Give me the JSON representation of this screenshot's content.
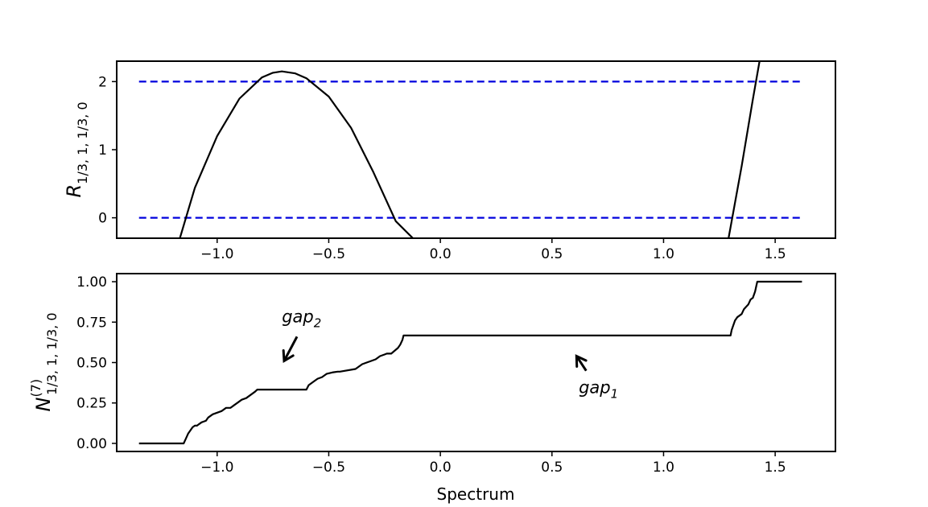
{
  "chart_data": [
    {
      "type": "line",
      "ylabel_main": "R",
      "ylabel_sub": "1/3, 1, 1/3, 0",
      "xlim": [
        -1.45,
        1.77
      ],
      "ylim": [
        -0.3,
        2.3
      ],
      "xticks": [
        -1.0,
        -0.5,
        0.0,
        0.5,
        1.0,
        1.5
      ],
      "xtick_labels": [
        "−1.0",
        "−0.5",
        "0.0",
        "0.5",
        "1.0",
        "1.5"
      ],
      "yticks": [
        0,
        1,
        2
      ],
      "ytick_labels": [
        "0",
        "1",
        "2"
      ],
      "grid": false,
      "colors": {
        "curve": "#000000",
        "reference": "#0000dd"
      },
      "reference_lines": [
        {
          "y": 2,
          "x_range": [
            -1.35,
            1.62
          ],
          "style": "dashed"
        },
        {
          "y": 0,
          "x_range": [
            -1.35,
            1.62
          ],
          "style": "dashed"
        }
      ],
      "series": [
        {
          "x": [
            -1.167,
            -1.1,
            -1.0,
            -0.9,
            -0.8,
            -0.75,
            -0.71,
            -0.65,
            -0.6,
            -0.5,
            -0.4,
            -0.3,
            -0.2,
            -0.123
          ],
          "values": [
            -0.3,
            0.44,
            1.2,
            1.75,
            2.06,
            2.13,
            2.15,
            2.12,
            2.05,
            1.78,
            1.32,
            0.67,
            -0.05,
            -0.3
          ]
        },
        {
          "x": [
            1.291,
            1.35,
            1.4,
            1.43
          ],
          "values": [
            -0.3,
            0.76,
            1.74,
            2.3
          ]
        }
      ]
    },
    {
      "type": "line",
      "xlabel": "Spectrum",
      "ylabel_main": "N",
      "ylabel_sup": "(7)",
      "ylabel_sub": "1/3, 1, 1/3, 0",
      "xlim": [
        -1.45,
        1.77
      ],
      "ylim": [
        -0.05,
        1.05
      ],
      "xticks": [
        -1.0,
        -0.5,
        0.0,
        0.5,
        1.0,
        1.5
      ],
      "xtick_labels": [
        "−1.0",
        "−0.5",
        "0.0",
        "0.5",
        "1.0",
        "1.5"
      ],
      "yticks": [
        0.0,
        0.25,
        0.5,
        0.75,
        1.0
      ],
      "ytick_labels": [
        "0.00",
        "0.25",
        "0.50",
        "0.75",
        "1.00"
      ],
      "grid": false,
      "colors": {
        "curve": "#000000"
      },
      "series": [
        {
          "x": [
            -1.35,
            -1.15,
            -1.14,
            -1.13,
            -1.12,
            -1.11,
            -1.1,
            -1.09,
            -1.08,
            -1.07,
            -1.05,
            -1.04,
            -1.02,
            -1.0,
            -0.98,
            -0.96,
            -0.94,
            -0.93,
            -0.91,
            -0.89,
            -0.87,
            -0.85,
            -0.83,
            -0.82,
            -0.7,
            -0.6,
            -0.59,
            -0.57,
            -0.55,
            -0.53,
            -0.51,
            -0.48,
            -0.46,
            -0.45,
            -0.38,
            -0.37,
            -0.35,
            -0.33,
            -0.31,
            -0.29,
            -0.27,
            -0.25,
            -0.24,
            -0.22,
            -0.19,
            -0.18,
            -0.17,
            -0.165,
            0.0,
            0.5,
            1.0,
            1.3,
            1.305,
            1.31,
            1.32,
            1.33,
            1.35,
            1.36,
            1.38,
            1.39,
            1.4,
            1.41,
            1.415,
            1.42,
            1.5,
            1.62
          ],
          "values": [
            0.0,
            0.0,
            0.03,
            0.06,
            0.08,
            0.1,
            0.11,
            0.11,
            0.12,
            0.13,
            0.14,
            0.16,
            0.18,
            0.19,
            0.2,
            0.22,
            0.22,
            0.23,
            0.25,
            0.27,
            0.28,
            0.3,
            0.32,
            0.333,
            0.333,
            0.333,
            0.36,
            0.38,
            0.4,
            0.41,
            0.43,
            0.44,
            0.444,
            0.444,
            0.46,
            0.47,
            0.49,
            0.5,
            0.51,
            0.52,
            0.54,
            0.55,
            0.555,
            0.555,
            0.59,
            0.61,
            0.64,
            0.667,
            0.667,
            0.667,
            0.667,
            0.667,
            0.7,
            0.72,
            0.76,
            0.78,
            0.8,
            0.83,
            0.86,
            0.89,
            0.9,
            0.94,
            0.97,
            1.0,
            1.0,
            1.0
          ]
        }
      ],
      "annotations": [
        {
          "text": "gap",
          "sub": "2",
          "text_at": [
            -0.71,
            0.75
          ],
          "arrow_to": [
            -0.7,
            0.51
          ]
        },
        {
          "text": "gap",
          "sub": "1",
          "text_at": [
            0.62,
            0.31
          ],
          "arrow_to": [
            0.61,
            0.54
          ]
        }
      ]
    }
  ]
}
